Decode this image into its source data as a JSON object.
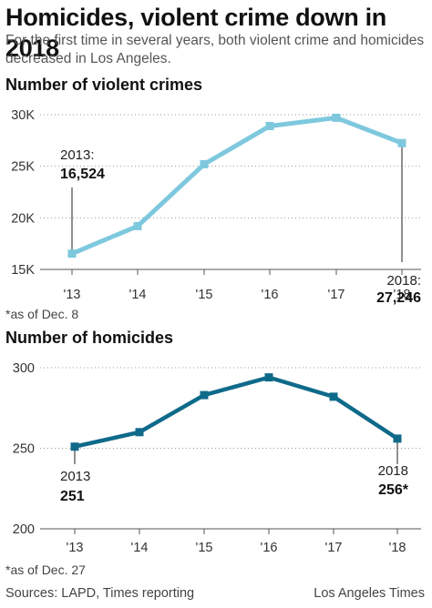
{
  "headline": "Homicides, violent crime down in 2018",
  "dek": "For the first time in several years, both violent crime and homicides decreased in Los Angeles.",
  "footer": {
    "sources": "Sources: LAPD, Times reporting",
    "credit": "Los Angeles Times"
  },
  "chart_data": [
    {
      "type": "line",
      "title": "Number of violent crimes",
      "categories": [
        "'13",
        "'14",
        "'15",
        "'16",
        "'17",
        "'18"
      ],
      "values": [
        16524,
        19200,
        25200,
        28900,
        29700,
        27246
      ],
      "ylim": [
        15000,
        30000
      ],
      "yticks": [
        15000,
        20000,
        25000,
        30000
      ],
      "ytick_labels": [
        "15K",
        "20K",
        "25K",
        "30K"
      ],
      "color": "#7ec8de",
      "annotations": [
        {
          "index": 0,
          "label": "2013:",
          "value_label": "16,524"
        },
        {
          "index": 5,
          "label": "2018:",
          "value_label": "27,246"
        }
      ],
      "note": "*as of Dec. 8",
      "grid": "dotted horizontal"
    },
    {
      "type": "line",
      "title": "Number of homicides",
      "categories": [
        "'13",
        "'14",
        "'15",
        "'16",
        "'17",
        "'18"
      ],
      "values": [
        251,
        260,
        283,
        294,
        282,
        256
      ],
      "ylim": [
        200,
        300
      ],
      "yticks": [
        200,
        250,
        300
      ],
      "ytick_labels": [
        "200",
        "250",
        "300"
      ],
      "color": "#0f6a8a",
      "annotations": [
        {
          "index": 0,
          "label": "2013",
          "value_label": "251"
        },
        {
          "index": 5,
          "label": "2018",
          "value_label": "256*"
        }
      ],
      "note": "*as of Dec. 27",
      "grid": "dotted horizontal"
    }
  ]
}
